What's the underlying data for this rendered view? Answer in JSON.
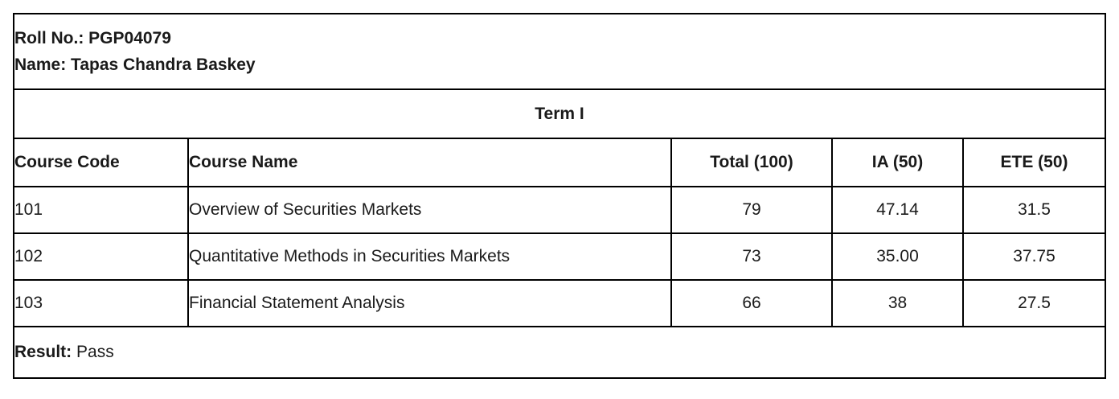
{
  "student": {
    "roll_label": "Roll No.:",
    "roll_value": "PGP04079",
    "name_label": "Name:",
    "name_value": "Tapas Chandra Baskey"
  },
  "term": {
    "title": "Term I"
  },
  "table": {
    "columns": [
      "Course Code",
      "Course Name",
      "Total (100)",
      "IA (50)",
      "ETE (50)"
    ],
    "rows": [
      {
        "code": "101",
        "name": "Overview of Securities Markets",
        "total": "79",
        "ia": "47.14",
        "ete": "31.5"
      },
      {
        "code": "102",
        "name": "Quantitative Methods in Securities Markets",
        "total": "73",
        "ia": "35.00",
        "ete": "37.75"
      },
      {
        "code": "103",
        "name": "Financial Statement Analysis",
        "total": "66",
        "ia": "38",
        "ete": "27.5"
      }
    ]
  },
  "result": {
    "label": "Result:",
    "value": "Pass"
  },
  "colors": {
    "border": "#000000",
    "text": "#1a1a1a",
    "background": "#ffffff"
  }
}
